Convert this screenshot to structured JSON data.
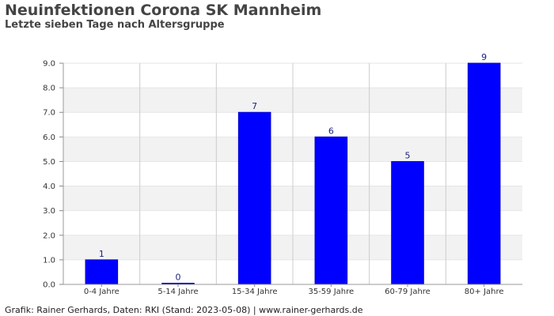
{
  "header": {
    "title": "Neuinfektionen Corona SK Mannheim",
    "subtitle": "Letzte sieben Tage nach Altersgruppe"
  },
  "footer": {
    "credit": "Grafik: Rainer Gerhards, Daten: RKI (Stand: 2023-05-08) | www.rainer-gerhards.de"
  },
  "colors": {
    "bar": "#0000ff",
    "bar_border": "#0000cc",
    "band": "#f2f2f2",
    "grid": "#cccccc"
  },
  "chart_data": {
    "type": "bar",
    "categories": [
      "0-4 Jahre",
      "5-14 Jahre",
      "15-34 Jahre",
      "35-59 Jahre",
      "60-79 Jahre",
      "80+ Jahre"
    ],
    "values": [
      1,
      0,
      7,
      6,
      5,
      9
    ],
    "data_labels": [
      "1",
      "0",
      "7",
      "6",
      "5",
      "9"
    ],
    "ylim": [
      0,
      9
    ],
    "yticks": [
      "0.0",
      "1.0",
      "2.0",
      "3.0",
      "4.0",
      "5.0",
      "6.0",
      "7.0",
      "8.0",
      "9.0"
    ],
    "xlabel": "",
    "ylabel": "",
    "grid": true,
    "legend": "none"
  }
}
